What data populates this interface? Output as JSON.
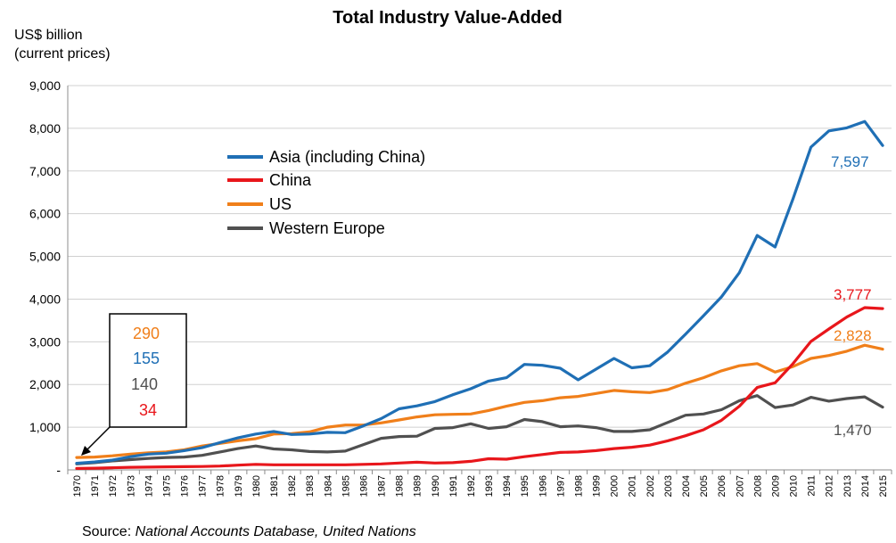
{
  "chart_data": {
    "type": "line",
    "title": "Total Industry Value-Added",
    "ylabel_line1": "US$ billion",
    "ylabel_line2": "(current prices)",
    "ylim": [
      0,
      9000
    ],
    "yticks": [
      "-",
      "1,000",
      "2,000",
      "3,000",
      "4,000",
      "5,000",
      "6,000",
      "7,000",
      "8,000",
      "9,000"
    ],
    "x": [
      "1970",
      "1971",
      "1972",
      "1973",
      "1974",
      "1975",
      "1976",
      "1977",
      "1978",
      "1979",
      "1980",
      "1981",
      "1982",
      "1983",
      "1984",
      "1985",
      "1986",
      "1987",
      "1988",
      "1989",
      "1990",
      "1991",
      "1992",
      "1993",
      "1994",
      "1995",
      "1996",
      "1997",
      "1998",
      "1999",
      "2000",
      "2001",
      "2002",
      "2003",
      "2004",
      "2005",
      "2006",
      "2007",
      "2008",
      "2009",
      "2010",
      "2011",
      "2012",
      "2013",
      "2014",
      "2015"
    ],
    "grid": true,
    "legend_position": "upper-left inside plot",
    "series": [
      {
        "name": "Asia (including China)",
        "color": "#1f6fb5",
        "values": [
          155,
          185,
          230,
          310,
          370,
          390,
          450,
          520,
          640,
          750,
          840,
          900,
          830,
          840,
          880,
          870,
          1030,
          1200,
          1430,
          1500,
          1600,
          1760,
          1900,
          2080,
          2160,
          2470,
          2450,
          2380,
          2110,
          2360,
          2610,
          2390,
          2440,
          2760,
          3180,
          3610,
          4050,
          4620,
          5490,
          5220,
          6350,
          7560,
          7940,
          8010,
          8160,
          7597
        ]
      },
      {
        "name": "China",
        "color": "#e8161b",
        "values": [
          34,
          40,
          50,
          60,
          65,
          70,
          75,
          80,
          90,
          110,
          130,
          120,
          120,
          120,
          120,
          120,
          130,
          140,
          160,
          180,
          160,
          170,
          200,
          260,
          250,
          310,
          360,
          410,
          420,
          450,
          500,
          530,
          580,
          680,
          800,
          940,
          1160,
          1490,
          1930,
          2040,
          2490,
          3010,
          3300,
          3580,
          3800,
          3777
        ]
      },
      {
        "name": "US",
        "color": "#f07f1a",
        "values": [
          290,
          300,
          330,
          370,
          400,
          420,
          470,
          560,
          620,
          680,
          730,
          840,
          850,
          890,
          1000,
          1050,
          1050,
          1100,
          1170,
          1240,
          1290,
          1300,
          1310,
          1390,
          1490,
          1580,
          1620,
          1690,
          1720,
          1790,
          1860,
          1830,
          1810,
          1880,
          2030,
          2160,
          2320,
          2440,
          2490,
          2290,
          2420,
          2610,
          2680,
          2780,
          2920,
          2828
        ]
      },
      {
        "name": "Western Europe",
        "color": "#505050",
        "values": [
          140,
          170,
          210,
          240,
          270,
          290,
          300,
          340,
          420,
          500,
          560,
          490,
          470,
          430,
          420,
          440,
          590,
          740,
          780,
          790,
          970,
          990,
          1080,
          970,
          1010,
          1180,
          1130,
          1010,
          1030,
          990,
          900,
          900,
          940,
          1110,
          1280,
          1310,
          1410,
          1620,
          1740,
          1460,
          1520,
          1700,
          1610,
          1670,
          1710,
          1470
        ]
      }
    ],
    "annotations": {
      "asia_end": "7,597",
      "china_end": "3,777",
      "us_end": "2,828",
      "we_end": "1,470"
    },
    "start_box": {
      "us": "290",
      "asia": "155",
      "we": "140",
      "china": "34"
    },
    "source_prefix": "Source: ",
    "source_italic": "National Accounts Database, United Nations"
  }
}
